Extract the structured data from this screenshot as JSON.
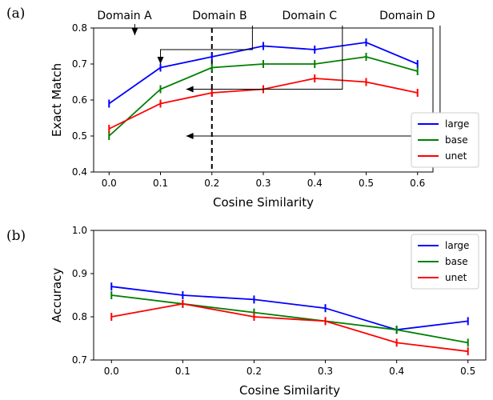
{
  "chart_data": [
    {
      "panel": "(a)",
      "type": "line",
      "xlabel": "Cosine Similarity",
      "ylabel": "Exact Match",
      "xlim": [
        -0.03,
        0.63
      ],
      "ylim": [
        0.4,
        0.8
      ],
      "xticks": [
        0.0,
        0.1,
        0.2,
        0.3,
        0.4,
        0.5,
        0.6
      ],
      "xtick_labels": [
        "0.0",
        "0.1",
        "0.2",
        "0.3",
        "0.4",
        "0.5",
        "0.6"
      ],
      "yticks": [
        0.4,
        0.5,
        0.6,
        0.7,
        0.8
      ],
      "ytick_labels": [
        "0.4",
        "0.5",
        "0.6",
        "0.7",
        "0.8"
      ],
      "grid": false,
      "legend": "lower-right",
      "x": [
        0.0,
        0.1,
        0.2,
        0.3,
        0.4,
        0.5,
        0.6
      ],
      "series": [
        {
          "name": "large",
          "color": "#0000ff",
          "values": [
            0.59,
            0.69,
            0.72,
            0.75,
            0.74,
            0.76,
            0.7
          ]
        },
        {
          "name": "base",
          "color": "#008000",
          "values": [
            0.5,
            0.63,
            0.69,
            0.7,
            0.7,
            0.72,
            0.68
          ]
        },
        {
          "name": "unet",
          "color": "#ff0000",
          "values": [
            0.52,
            0.59,
            0.62,
            0.63,
            0.66,
            0.65,
            0.62
          ]
        }
      ],
      "vline": {
        "x": 0.2,
        "style": "dashed"
      },
      "annotations": [
        {
          "text": "Domain A",
          "x_text": 0.03,
          "arrow_tip": [
            0.05,
            0.78
          ]
        },
        {
          "text": "Domain B",
          "x_text": 0.215,
          "arrow_tip": [
            0.1,
            0.7
          ]
        },
        {
          "text": "Domain C",
          "x_text": 0.39,
          "arrow_tip": [
            0.15,
            0.63
          ]
        },
        {
          "text": "Domain D",
          "x_text": 0.58,
          "arrow_tip": [
            0.15,
            0.5
          ]
        }
      ]
    },
    {
      "panel": "(b)",
      "type": "line",
      "xlabel": "Cosine Similarity",
      "ylabel": "Accuracy",
      "xlim": [
        -0.025,
        0.525
      ],
      "ylim": [
        0.7,
        1.0
      ],
      "xticks": [
        0.0,
        0.1,
        0.2,
        0.3,
        0.4,
        0.5
      ],
      "xtick_labels": [
        "0.0",
        "0.1",
        "0.2",
        "0.3",
        "0.4",
        "0.5"
      ],
      "yticks": [
        0.7,
        0.8,
        0.9,
        1.0
      ],
      "ytick_labels": [
        "0.7",
        "0.8",
        "0.9",
        "1.0"
      ],
      "grid": false,
      "legend": "upper-right",
      "x": [
        0.0,
        0.1,
        0.2,
        0.3,
        0.4,
        0.5
      ],
      "series": [
        {
          "name": "large",
          "color": "#0000ff",
          "values": [
            0.87,
            0.85,
            0.84,
            0.82,
            0.77,
            0.79
          ]
        },
        {
          "name": "base",
          "color": "#008000",
          "values": [
            0.85,
            0.83,
            0.81,
            0.79,
            0.77,
            0.74
          ]
        },
        {
          "name": "unet",
          "color": "#ff0000",
          "values": [
            0.8,
            0.83,
            0.8,
            0.79,
            0.74,
            0.72
          ]
        }
      ]
    }
  ]
}
